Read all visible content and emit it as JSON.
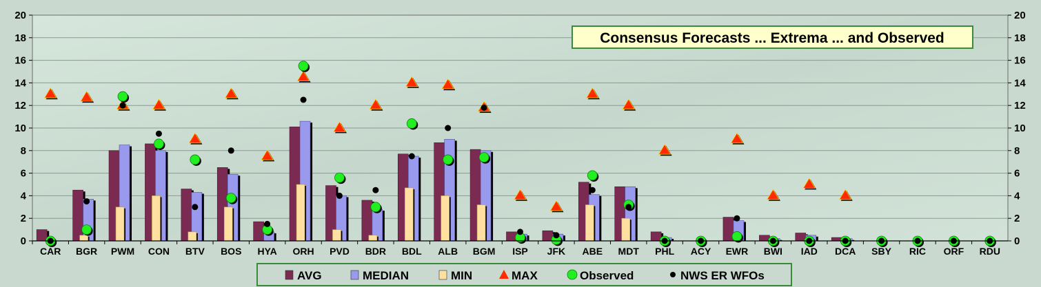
{
  "chart_data": {
    "type": "bar",
    "title": "Consensus Forecasts ... Extrema ... and Observed",
    "xlabel": "",
    "ylabel": "",
    "ylim": [
      0,
      20
    ],
    "yticks": [
      "0",
      "2",
      "4",
      "6",
      "8",
      "10",
      "12",
      "14",
      "16",
      "18",
      "20"
    ],
    "grid": true,
    "legend_position": "bottom",
    "categories": [
      "CAR",
      "BGR",
      "PWM",
      "CON",
      "BTV",
      "BOS",
      "HYA",
      "ORH",
      "PVD",
      "BDR",
      "BDL",
      "ALB",
      "BGM",
      "ISP",
      "JFK",
      "ABE",
      "MDT",
      "PHL",
      "ACY",
      "EWR",
      "BWI",
      "IAD",
      "DCA",
      "SBY",
      "RIC",
      "ORF",
      "RDU"
    ],
    "series": [
      {
        "name": "AVG",
        "kind": "bar",
        "color": "#7b2a52",
        "values": [
          1.0,
          4.5,
          8.0,
          8.6,
          4.6,
          6.5,
          1.7,
          10.1,
          4.9,
          3.6,
          7.7,
          8.7,
          8.1,
          0.8,
          0.9,
          5.2,
          4.8,
          0.8,
          0.0,
          2.1,
          0.5,
          0.7,
          0.3,
          0.0,
          0.0,
          0.0,
          0.0
        ]
      },
      {
        "name": "MEDIAN",
        "kind": "bar",
        "color": "#9999ee",
        "values": [
          0.0,
          3.7,
          8.5,
          8.0,
          4.3,
          5.9,
          0.8,
          10.6,
          4.0,
          2.8,
          7.5,
          9.0,
          8.0,
          0.6,
          0.6,
          4.1,
          4.8,
          0.3,
          0.0,
          1.8,
          0.2,
          0.5,
          0.2,
          0.0,
          0.0,
          0.0,
          0.0
        ]
      },
      {
        "name": "MIN",
        "kind": "bar",
        "color": "#ffe0a0",
        "values": [
          0.0,
          0.5,
          3.0,
          4.0,
          0.8,
          3.0,
          0.0,
          5.0,
          1.0,
          0.5,
          4.7,
          4.0,
          3.2,
          0.0,
          0.0,
          3.2,
          2.0,
          0.0,
          0.0,
          0.0,
          0.0,
          0.0,
          0.0,
          0.0,
          0.0,
          0.0,
          0.0
        ]
      },
      {
        "name": "MAX",
        "kind": "marker",
        "color": "#ff2a00",
        "values": [
          13.0,
          12.7,
          12.0,
          12.0,
          9.0,
          13.0,
          7.5,
          14.5,
          10.0,
          12.0,
          14.0,
          13.8,
          11.8,
          4.0,
          3.0,
          13.0,
          12.0,
          8.0,
          0.0,
          9.0,
          4.0,
          5.0,
          4.0,
          0.0,
          0.0,
          0.0,
          0.0
        ]
      },
      {
        "name": "Observed",
        "kind": "marker",
        "color": "#22ee22",
        "values": [
          0.0,
          1.0,
          12.8,
          8.6,
          7.2,
          3.8,
          1.0,
          15.5,
          5.6,
          3.0,
          10.4,
          7.2,
          7.4,
          0.3,
          0.1,
          5.8,
          3.2,
          0.0,
          0.0,
          0.4,
          0.0,
          0.0,
          0.0,
          0.0,
          0.0,
          0.0,
          0.0
        ]
      },
      {
        "name": "NWS ER WFOs",
        "kind": "marker",
        "color": "#000000",
        "values": [
          0.0,
          3.5,
          12.0,
          9.5,
          3.0,
          8.0,
          1.5,
          12.5,
          4.0,
          4.5,
          7.5,
          10.0,
          11.8,
          0.8,
          0.5,
          4.5,
          3.0,
          0.0,
          0.0,
          2.0,
          0.0,
          0.0,
          0.0,
          0.0,
          0.0,
          0.0,
          0.0
        ]
      }
    ]
  }
}
